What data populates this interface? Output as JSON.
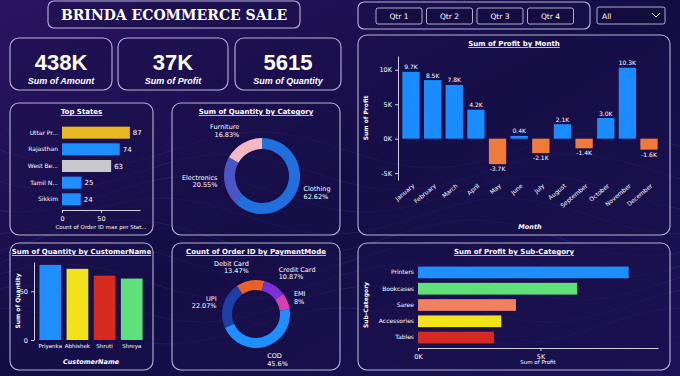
{
  "header": {
    "title": "BRINDA ECOMMERCE SALE"
  },
  "slicers": {
    "quarters": [
      "Qtr 1",
      "Qtr 2",
      "Qtr 3",
      "Qtr 4"
    ],
    "dropdown": "All"
  },
  "kpis": [
    {
      "value": "438K",
      "label": "Sum of Amount"
    },
    {
      "value": "37K",
      "label": "Sum of Profit"
    },
    {
      "value": "5615",
      "label": "Sum of Quantity"
    }
  ],
  "chart_data": [
    {
      "type": "bar",
      "title": "Top States",
      "orientation": "horizontal",
      "categories": [
        "Uttar Pr...",
        "Rajasthan",
        "West Be...",
        "Tamil N...",
        "Sikkim"
      ],
      "values": [
        87,
        74,
        63,
        25,
        24
      ],
      "colors": [
        "#e8b923",
        "#1f8fff",
        "#c9c9c9",
        "#1f8fff",
        "#1f8fff"
      ],
      "xlim": [
        0,
        100
      ],
      "xticks": [
        0,
        50
      ],
      "data_labels": true,
      "x_label": "Count of Order ID max per Stat..."
    },
    {
      "type": "pie",
      "title": "Sum of Quantity by Category",
      "categories": [
        "Clothing",
        "Electronics",
        "Furniture"
      ],
      "values": [
        62.62,
        20.55,
        16.83
      ],
      "value_labels": [
        "62.62%",
        "20.55%",
        "16.83%"
      ],
      "colors": [
        "#1f6fdc",
        "#4a56c8",
        "#f4b8c4"
      ],
      "data_labels": true
    },
    {
      "type": "bar",
      "title": "Sum of Profit by Month",
      "categories": [
        "January",
        "February",
        "March",
        "April",
        "May",
        "June",
        "July",
        "August",
        "September",
        "October",
        "November",
        "December"
      ],
      "values": [
        9700,
        8500,
        7800,
        4200,
        -3700,
        400,
        -2100,
        2100,
        -1400,
        3000,
        10300,
        -1600
      ],
      "value_labels": [
        "9.7K",
        "8.5K",
        "7.8K",
        "4.2K",
        "-3.7K",
        "0.4K",
        "-2.1K",
        "2.1K",
        "-1.4K",
        "3.0K",
        "10.3K",
        "-1.6K"
      ],
      "colors": [
        "#1a8cff",
        "#1a8cff",
        "#1a8cff",
        "#1a8cff",
        "#f07a3a",
        "#1a8cff",
        "#f07a3a",
        "#1a8cff",
        "#f07a3a",
        "#1a8cff",
        "#1a8cff",
        "#f07a3a"
      ],
      "ylim": [
        -6000,
        12000
      ],
      "yticks": [
        {
          "value": -5000,
          "label": "-5K"
        },
        {
          "value": 0,
          "label": "0K"
        },
        {
          "value": 5000,
          "label": "5K"
        },
        {
          "value": 10000,
          "label": "10K"
        }
      ],
      "data_labels": true,
      "x_label": "Month",
      "y_label": "Sum of Profit"
    },
    {
      "type": "bar",
      "title": "Sum of Quantity by CustomerName",
      "categories": [
        "Priyanka",
        "Abhishek",
        "Shruti",
        "Shreya"
      ],
      "values": [
        77,
        73,
        66,
        63
      ],
      "colors": [
        "#1f8fff",
        "#f2e21c",
        "#d42a1f",
        "#5ee07a"
      ],
      "ylim": [
        0,
        80
      ],
      "yticks": [
        0,
        50
      ],
      "x_label": "CustomerName",
      "y_label": "Sum of Quantity"
    },
    {
      "type": "pie",
      "title": "Count of Order ID by PaymentMode",
      "categories": [
        "Debit Card",
        "Credit Card",
        "EMI",
        "COD",
        "UPI"
      ],
      "values": [
        13.47,
        10.87,
        8,
        45.6,
        22.07
      ],
      "value_labels": [
        "13.47%",
        "10.87%",
        "8%",
        "45.6%",
        "22.07%"
      ],
      "colors": [
        "#e8622a",
        "#7b2fd6",
        "#d63fb0",
        "#1f8fff",
        "#1f3fa8"
      ],
      "data_labels": true
    },
    {
      "type": "bar",
      "title": "Sum of Profit by Sub-Category",
      "orientation": "horizontal",
      "categories": [
        "Printers",
        "Bookcases",
        "Saree",
        "Accessories",
        "Tables"
      ],
      "values": [
        8600,
        6500,
        4000,
        3400,
        3100
      ],
      "colors": [
        "#1f8fff",
        "#5ee07a",
        "#f08060",
        "#f2e21c",
        "#d42a1f"
      ],
      "xlim": [
        0,
        9800
      ],
      "xticks": [
        {
          "value": 0,
          "label": "0K"
        },
        {
          "value": 5000,
          "label": "5K"
        }
      ],
      "x_label": "Sum of Profit",
      "y_label": "Sub-Category"
    }
  ]
}
